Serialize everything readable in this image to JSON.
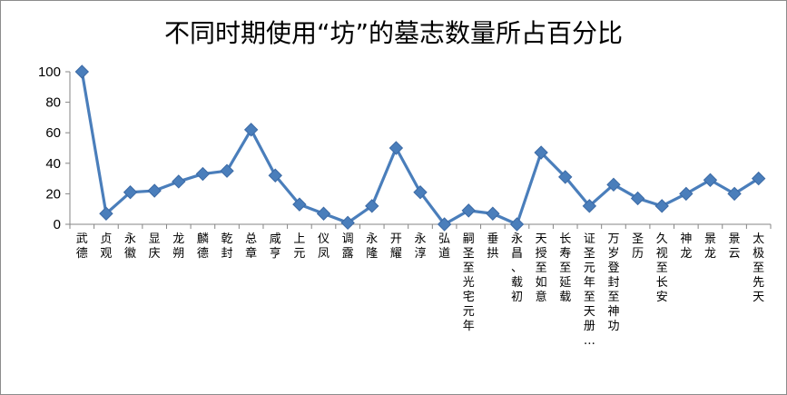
{
  "chart_data": {
    "type": "line",
    "title": "不同时期使用“坊”的墓志数量所占百分比",
    "xlabel": "",
    "ylabel": "",
    "ylim": [
      0,
      100
    ],
    "yticks": [
      0,
      20,
      40,
      60,
      80,
      100
    ],
    "grid": false,
    "legend": "none",
    "series_color": "#4a7ebb",
    "categories": [
      "武德",
      "贞观",
      "永徽",
      "显庆",
      "龙朔",
      "麟德",
      "乾封",
      "总章",
      "咸亨",
      "上元",
      "仪凤",
      "调露",
      "永隆",
      "开耀",
      "永淳",
      "弘道",
      "嗣圣至光宅元年",
      "垂拱",
      "永昌、载初",
      "天授至如意",
      "长寿至延载",
      "证圣元年至天册…",
      "万岁登封至神功",
      "圣历",
      "久视至长安",
      "神龙",
      "景龙",
      "景云",
      "太极至先天"
    ],
    "values": [
      100,
      7,
      21,
      22,
      28,
      33,
      35,
      62,
      32,
      13,
      7,
      1,
      12,
      50,
      21,
      0,
      9,
      7,
      0,
      47,
      31,
      12,
      26,
      17,
      12,
      20,
      29,
      20,
      30
    ]
  }
}
